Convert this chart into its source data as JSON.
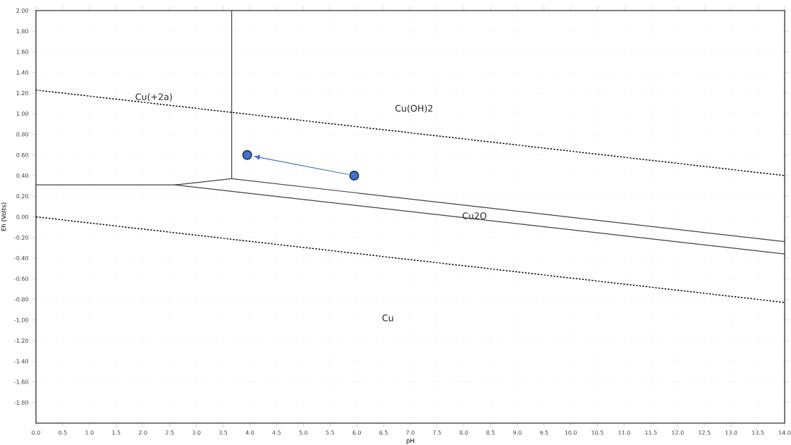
{
  "chart_data": {
    "type": "line",
    "xlabel": "pH",
    "ylabel": "Eh (Volts)",
    "xlim": [
      0,
      14
    ],
    "ylim": [
      -2,
      2
    ],
    "xticks": [
      {
        "value": 0,
        "label": "0.0"
      },
      {
        "value": 0.5,
        "label": "0.5"
      },
      {
        "value": 1,
        "label": "1.0"
      },
      {
        "value": 1.5,
        "label": "1.5"
      },
      {
        "value": 2,
        "label": "2.0"
      },
      {
        "value": 2.5,
        "label": "2.5"
      },
      {
        "value": 3,
        "label": "3.0"
      },
      {
        "value": 3.5,
        "label": "3.5"
      },
      {
        "value": 4,
        "label": "4.0"
      },
      {
        "value": 4.5,
        "label": "4.5"
      },
      {
        "value": 5,
        "label": "5.0"
      },
      {
        "value": 5.5,
        "label": "5.5"
      },
      {
        "value": 6,
        "label": "6.0"
      },
      {
        "value": 6.5,
        "label": "6.5"
      },
      {
        "value": 7,
        "label": "7.0"
      },
      {
        "value": 7.5,
        "label": "7.5"
      },
      {
        "value": 8,
        "label": "8.0"
      },
      {
        "value": 8.5,
        "label": "8.5"
      },
      {
        "value": 9,
        "label": "9.0"
      },
      {
        "value": 9.5,
        "label": "9.5"
      },
      {
        "value": 10,
        "label": "10.0"
      },
      {
        "value": 10.5,
        "label": "10.5"
      },
      {
        "value": 11,
        "label": "11.0"
      },
      {
        "value": 11.5,
        "label": "11.5"
      },
      {
        "value": 12,
        "label": "12.0"
      },
      {
        "value": 12.5,
        "label": "12.5"
      },
      {
        "value": 13,
        "label": "13.0"
      },
      {
        "value": 13.5,
        "label": "13.5"
      },
      {
        "value": 14,
        "label": "14.0"
      }
    ],
    "yticks": [
      {
        "value": -1.8,
        "label": "-1.80"
      },
      {
        "value": -1.6,
        "label": "-1.60"
      },
      {
        "value": -1.4,
        "label": "-1.40"
      },
      {
        "value": -1.2,
        "label": "-1.20"
      },
      {
        "value": -1,
        "label": "-1.00"
      },
      {
        "value": -0.8,
        "label": "-0.80"
      },
      {
        "value": -0.6,
        "label": "-0.60"
      },
      {
        "value": -0.4,
        "label": "-0.40"
      },
      {
        "value": -0.2,
        "label": "-0.20"
      },
      {
        "value": 0,
        "label": "0.00"
      },
      {
        "value": 0.2,
        "label": "0.20"
      },
      {
        "value": 0.4,
        "label": "0.40"
      },
      {
        "value": 0.6,
        "label": "0.60"
      },
      {
        "value": 0.8,
        "label": "0.80"
      },
      {
        "value": 1,
        "label": "1.00"
      },
      {
        "value": 1.2,
        "label": "1.20"
      },
      {
        "value": 1.4,
        "label": "1.40"
      },
      {
        "value": 1.6,
        "label": "1.60"
      },
      {
        "value": 1.8,
        "label": "1.80"
      },
      {
        "value": 2,
        "label": "2.00"
      }
    ],
    "grid": true,
    "series": [
      {
        "color": "#000000",
        "line_style": "dashed",
        "marker": "none",
        "x": [
          0,
          14
        ],
        "values": [
          1.23,
          0.4
        ]
      },
      {
        "color": "#000000",
        "line_style": "dashed",
        "marker": "none",
        "x": [
          0,
          14
        ],
        "values": [
          0,
          -0.83
        ]
      },
      {
        "color": "#404040",
        "line_style": "solid",
        "marker": "none",
        "x": [
          0,
          2.6,
          3.66,
          3.66
        ],
        "values": [
          0.31,
          0.31,
          0.37,
          2
        ]
      },
      {
        "color": "#404040",
        "line_style": "solid",
        "marker": "none",
        "x": [
          3.66,
          14
        ],
        "values": [
          0.37,
          -0.24
        ]
      },
      {
        "color": "#404040",
        "line_style": "solid",
        "marker": "none",
        "x": [
          2.6,
          14
        ],
        "values": [
          0.31,
          -0.36
        ]
      },
      {
        "type": "scatter",
        "color": "#4472c4",
        "marker": "circle",
        "x": [
          5.95,
          3.95
        ],
        "values": [
          0.4,
          0.6
        ]
      }
    ],
    "annotations": [
      "Cu(+2a)",
      "Cu(OH)2",
      {
        "text": "Cu2O",
        "x": 8.2,
        "y": 0.01
      },
      "Cu"
    ]
  }
}
